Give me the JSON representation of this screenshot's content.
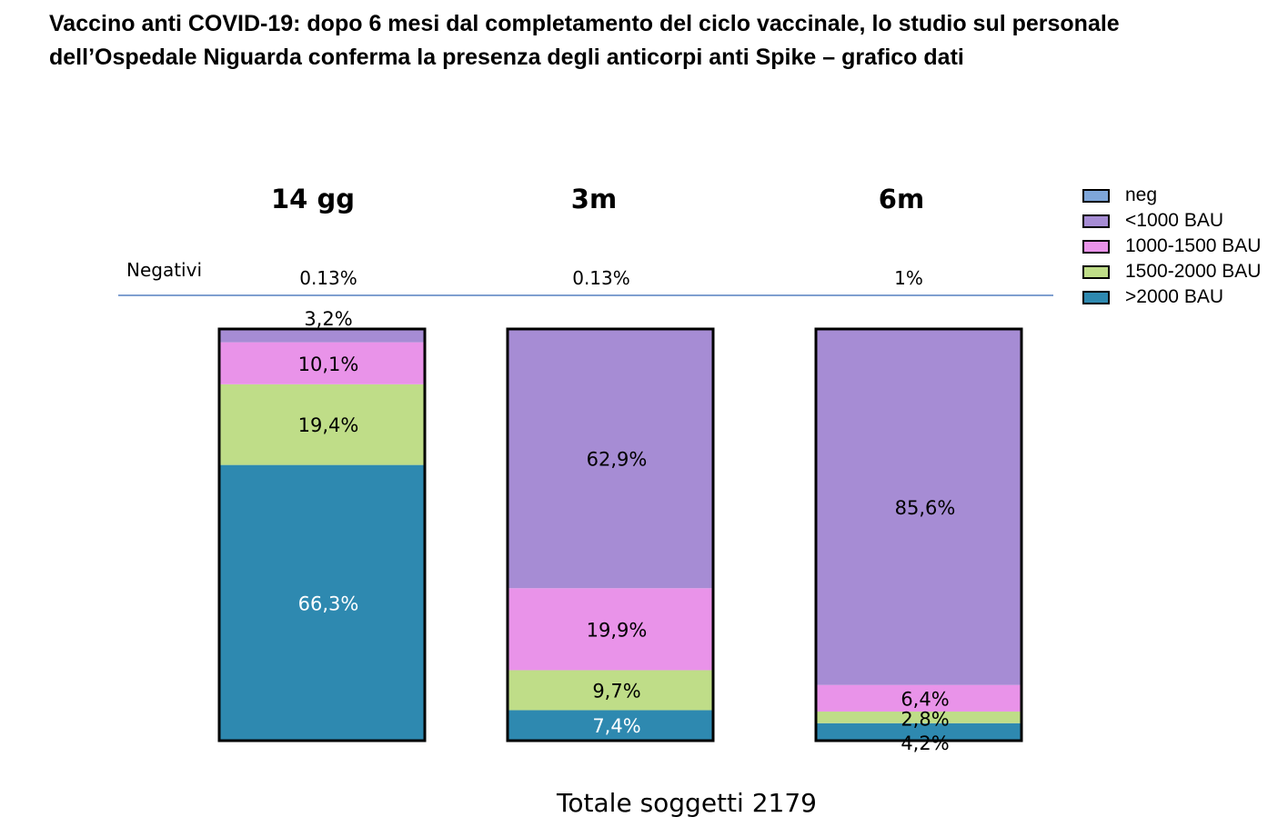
{
  "title": {
    "line1": "Vaccino anti COVID-19: dopo 6 mesi dal completamento del ciclo vaccinale, lo studio sul personale",
    "line2": "dell’Ospedale Niguarda conferma la presenza degli anticorpi anti Spike – grafico dati"
  },
  "footer": "Totale soggetti 2179",
  "chart_data": {
    "type": "bar",
    "stacked": true,
    "normalized_percent": true,
    "categories": [
      "14 gg",
      "3m",
      "6m"
    ],
    "negatives_label": "Negativi",
    "negatives": [
      "0.13%",
      "0.13%",
      "1%"
    ],
    "series": [
      {
        "name": ">2000 BAU",
        "color": "#2e89b0",
        "values": [
          66.3,
          7.4,
          4.2
        ],
        "labels": [
          "66,3%",
          "7,4%",
          "4,2%"
        ],
        "label_color": [
          "#ffffff",
          "#ffffff",
          "#000000"
        ]
      },
      {
        "name": "1500-2000 BAU",
        "color": "#bfdd88",
        "values": [
          19.4,
          9.7,
          2.8
        ],
        "labels": [
          "19,4%",
          "9,7%",
          "2,8%"
        ],
        "label_color": [
          "#000000",
          "#000000",
          "#000000"
        ]
      },
      {
        "name": "1000-1500 BAU",
        "color": "#e993e9",
        "values": [
          10.1,
          19.9,
          6.4
        ],
        "labels": [
          "10,1%",
          "19,9%",
          "6,4%"
        ],
        "label_color": [
          "#000000",
          "#000000",
          "#000000"
        ]
      },
      {
        "name": "<1000 BAU",
        "color": "#a68cd4",
        "values": [
          3.2,
          62.9,
          85.6
        ],
        "labels": [
          "3,2%",
          "62,9%",
          "85,6%"
        ],
        "label_color": [
          "#000000",
          "#000000",
          "#000000"
        ]
      }
    ],
    "legend": [
      {
        "name": "neg",
        "color": "#7ea6da"
      },
      {
        "name": "<1000 BAU",
        "color": "#a68cd4"
      },
      {
        "name": "1000-1500 BAU",
        "color": "#e993e9"
      },
      {
        "name": "1500-2000 BAU",
        "color": "#bfdd88"
      },
      {
        "name": ">2000 BAU",
        "color": "#2e89b0"
      }
    ],
    "legend_position": "top-right",
    "grid": false
  }
}
